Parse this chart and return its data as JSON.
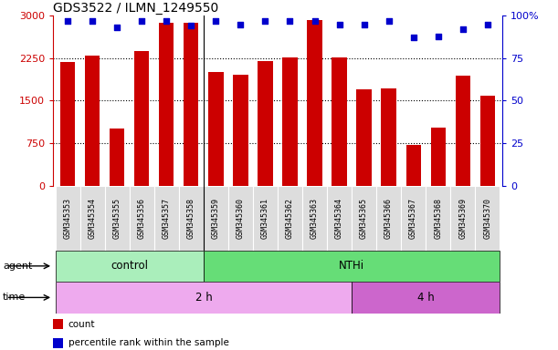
{
  "title": "GDS3522 / ILMN_1249550",
  "samples": [
    "GSM345353",
    "GSM345354",
    "GSM345355",
    "GSM345356",
    "GSM345357",
    "GSM345358",
    "GSM345359",
    "GSM345360",
    "GSM345361",
    "GSM345362",
    "GSM345363",
    "GSM345364",
    "GSM345365",
    "GSM345366",
    "GSM345367",
    "GSM345368",
    "GSM345369",
    "GSM345370"
  ],
  "counts": [
    2180,
    2300,
    1000,
    2380,
    2870,
    2870,
    2000,
    1950,
    2200,
    2260,
    2920,
    2260,
    1700,
    1710,
    710,
    1030,
    1940,
    1590
  ],
  "percentile_ranks": [
    97,
    97,
    93,
    97,
    97,
    94,
    97,
    95,
    97,
    97,
    97,
    95,
    95,
    97,
    87,
    88,
    92,
    95
  ],
  "bar_color": "#cc0000",
  "dot_color": "#0000cc",
  "ylim_left": [
    0,
    3000
  ],
  "ylim_right": [
    0,
    100
  ],
  "yticks_left": [
    0,
    750,
    1500,
    2250,
    3000
  ],
  "yticks_right": [
    0,
    25,
    50,
    75,
    100
  ],
  "agent_groups": [
    {
      "label": "control",
      "start": 0,
      "end": 6,
      "color": "#aaeebb"
    },
    {
      "label": "NTHi",
      "start": 6,
      "end": 18,
      "color": "#66dd77"
    }
  ],
  "time_groups": [
    {
      "label": "2 h",
      "start": 0,
      "end": 12,
      "color": "#eeaaee"
    },
    {
      "label": "4 h",
      "start": 12,
      "end": 18,
      "color": "#cc66cc"
    }
  ],
  "legend_items": [
    {
      "color": "#cc0000",
      "label": "count"
    },
    {
      "color": "#0000cc",
      "label": "percentile rank within the sample"
    }
  ],
  "cell_bg": "#dddddd",
  "white": "#ffffff"
}
